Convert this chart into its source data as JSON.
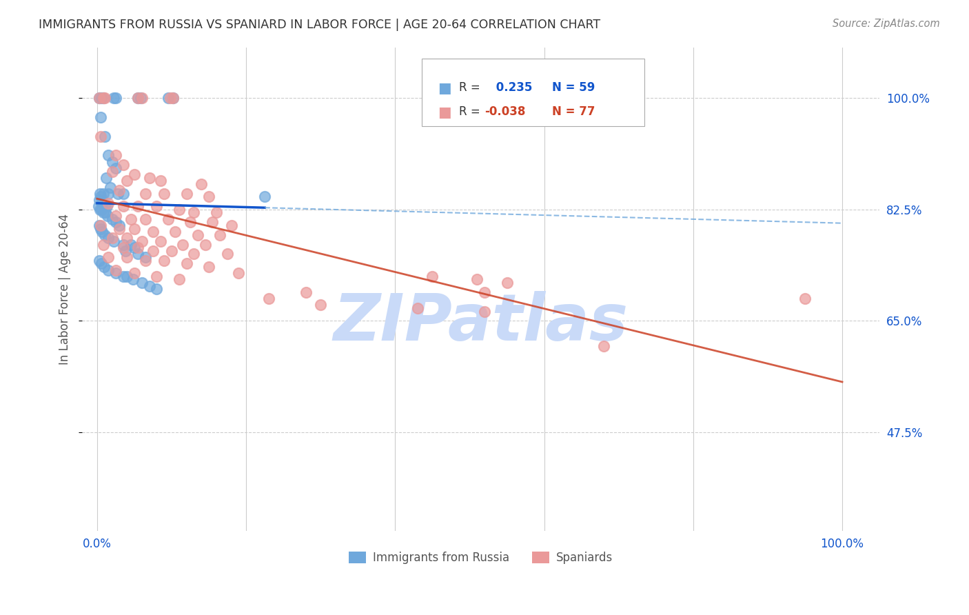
{
  "title": "IMMIGRANTS FROM RUSSIA VS SPANIARD IN LABOR FORCE | AGE 20-64 CORRELATION CHART",
  "source": "Source: ZipAtlas.com",
  "ylabel": "In Labor Force | Age 20-64",
  "legend_label_blue": "Immigrants from Russia",
  "legend_label_pink": "Spaniards",
  "blue_color": "#6fa8dc",
  "pink_color": "#ea9999",
  "trendline_blue_color": "#1155cc",
  "trendline_pink_color": "#cc4125",
  "dashed_line_color": "#6fa8dc",
  "watermark": "ZIPatlas",
  "watermark_color": "#c9daf8",
  "background": "#ffffff",
  "grid_color": "#cccccc",
  "y_ticks": [
    47.5,
    65.0,
    82.5,
    100.0
  ],
  "x_ticks": [
    0.0,
    20.0,
    40.0,
    60.0,
    80.0,
    100.0
  ],
  "xlim": [
    -2.0,
    105.0
  ],
  "ylim": [
    32.0,
    108.0
  ],
  "blue_R": "0.235",
  "blue_N": "59",
  "pink_R": "-0.038",
  "pink_N": "77",
  "blue_scatter": [
    [
      0.3,
      100.0
    ],
    [
      0.6,
      100.0
    ],
    [
      0.8,
      100.0
    ],
    [
      2.2,
      100.0
    ],
    [
      2.5,
      100.0
    ],
    [
      5.5,
      100.0
    ],
    [
      5.8,
      100.0
    ],
    [
      9.5,
      100.0
    ],
    [
      10.2,
      100.0
    ],
    [
      0.5,
      97.0
    ],
    [
      1.0,
      94.0
    ],
    [
      1.5,
      91.0
    ],
    [
      2.0,
      90.0
    ],
    [
      2.5,
      89.0
    ],
    [
      1.2,
      87.5
    ],
    [
      1.8,
      86.0
    ],
    [
      0.4,
      85.0
    ],
    [
      0.8,
      85.0
    ],
    [
      1.5,
      85.0
    ],
    [
      2.8,
      85.0
    ],
    [
      3.5,
      85.0
    ],
    [
      0.3,
      84.0
    ],
    [
      0.5,
      84.5
    ],
    [
      0.7,
      83.5
    ],
    [
      1.0,
      83.0
    ],
    [
      1.3,
      83.0
    ],
    [
      0.2,
      83.0
    ],
    [
      0.4,
      82.5
    ],
    [
      0.6,
      82.5
    ],
    [
      0.8,
      82.0
    ],
    [
      1.1,
      82.0
    ],
    [
      1.4,
      81.5
    ],
    [
      2.0,
      81.0
    ],
    [
      2.5,
      80.5
    ],
    [
      3.0,
      80.0
    ],
    [
      0.3,
      80.0
    ],
    [
      0.5,
      79.5
    ],
    [
      0.7,
      79.0
    ],
    [
      1.0,
      78.5
    ],
    [
      1.5,
      78.0
    ],
    [
      2.2,
      77.5
    ],
    [
      3.5,
      77.0
    ],
    [
      4.5,
      77.0
    ],
    [
      5.0,
      76.5
    ],
    [
      3.8,
      76.0
    ],
    [
      5.5,
      75.5
    ],
    [
      6.5,
      75.0
    ],
    [
      0.3,
      74.5
    ],
    [
      0.6,
      74.0
    ],
    [
      0.9,
      73.5
    ],
    [
      1.5,
      73.0
    ],
    [
      2.5,
      72.5
    ],
    [
      3.5,
      72.0
    ],
    [
      4.0,
      72.0
    ],
    [
      4.8,
      71.5
    ],
    [
      6.0,
      71.0
    ],
    [
      7.0,
      70.5
    ],
    [
      8.0,
      70.0
    ],
    [
      22.5,
      84.5
    ]
  ],
  "pink_scatter": [
    [
      0.3,
      100.0
    ],
    [
      0.8,
      100.0
    ],
    [
      1.0,
      100.0
    ],
    [
      5.5,
      100.0
    ],
    [
      6.0,
      100.0
    ],
    [
      9.8,
      100.0
    ],
    [
      10.2,
      100.0
    ],
    [
      0.5,
      94.0
    ],
    [
      2.5,
      91.0
    ],
    [
      3.5,
      89.5
    ],
    [
      2.0,
      88.5
    ],
    [
      5.0,
      88.0
    ],
    [
      7.0,
      87.5
    ],
    [
      4.0,
      87.0
    ],
    [
      8.5,
      87.0
    ],
    [
      14.0,
      86.5
    ],
    [
      3.0,
      85.5
    ],
    [
      6.5,
      85.0
    ],
    [
      9.0,
      85.0
    ],
    [
      12.0,
      85.0
    ],
    [
      15.0,
      84.5
    ],
    [
      1.5,
      83.5
    ],
    [
      3.5,
      83.0
    ],
    [
      5.5,
      83.0
    ],
    [
      8.0,
      83.0
    ],
    [
      11.0,
      82.5
    ],
    [
      13.0,
      82.0
    ],
    [
      16.0,
      82.0
    ],
    [
      2.5,
      81.5
    ],
    [
      4.5,
      81.0
    ],
    [
      6.5,
      81.0
    ],
    [
      9.5,
      81.0
    ],
    [
      12.5,
      80.5
    ],
    [
      15.5,
      80.5
    ],
    [
      18.0,
      80.0
    ],
    [
      0.5,
      80.0
    ],
    [
      3.0,
      79.5
    ],
    [
      5.0,
      79.5
    ],
    [
      7.5,
      79.0
    ],
    [
      10.5,
      79.0
    ],
    [
      13.5,
      78.5
    ],
    [
      16.5,
      78.5
    ],
    [
      2.0,
      78.0
    ],
    [
      4.0,
      78.0
    ],
    [
      6.0,
      77.5
    ],
    [
      8.5,
      77.5
    ],
    [
      11.5,
      77.0
    ],
    [
      14.5,
      77.0
    ],
    [
      0.8,
      77.0
    ],
    [
      3.5,
      76.5
    ],
    [
      5.5,
      76.5
    ],
    [
      7.5,
      76.0
    ],
    [
      10.0,
      76.0
    ],
    [
      13.0,
      75.5
    ],
    [
      17.5,
      75.5
    ],
    [
      1.5,
      75.0
    ],
    [
      4.0,
      75.0
    ],
    [
      6.5,
      74.5
    ],
    [
      9.0,
      74.5
    ],
    [
      12.0,
      74.0
    ],
    [
      15.0,
      73.5
    ],
    [
      2.5,
      73.0
    ],
    [
      5.0,
      72.5
    ],
    [
      19.0,
      72.5
    ],
    [
      8.0,
      72.0
    ],
    [
      11.0,
      71.5
    ],
    [
      45.0,
      72.0
    ],
    [
      51.0,
      71.5
    ],
    [
      55.0,
      71.0
    ],
    [
      28.0,
      69.5
    ],
    [
      52.0,
      69.5
    ],
    [
      23.0,
      68.5
    ],
    [
      30.0,
      67.5
    ],
    [
      43.0,
      67.0
    ],
    [
      52.0,
      66.5
    ],
    [
      95.0,
      68.5
    ],
    [
      68.0,
      61.0
    ]
  ]
}
